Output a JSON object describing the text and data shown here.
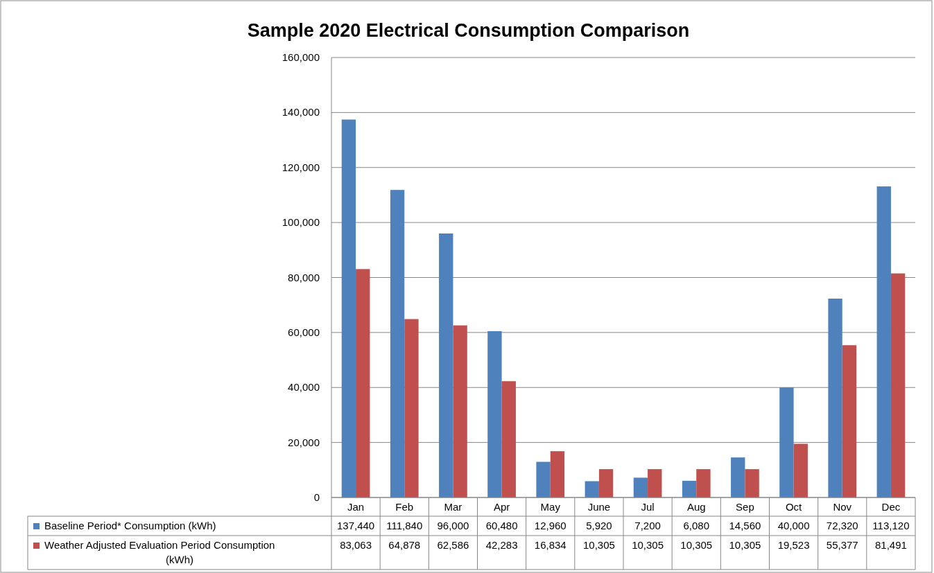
{
  "chart_data": {
    "type": "bar",
    "title": "Sample 2020 Electrical Consumption Comparison",
    "categories": [
      "Jan",
      "Feb",
      "Mar",
      "Apr",
      "May",
      "June",
      "Jul",
      "Aug",
      "Sep",
      "Oct",
      "Nov",
      "Dec"
    ],
    "series": [
      {
        "name": "Baseline Period* Consumption (kWh)",
        "color": "#4f81bd",
        "values": [
          137440,
          111840,
          96000,
          60480,
          12960,
          5920,
          7200,
          6080,
          14560,
          40000,
          72320,
          113120
        ],
        "value_labels": [
          "137,440",
          "111,840",
          "96,000",
          "60,480",
          "12,960",
          "5,920",
          "7,200",
          "6,080",
          "14,560",
          "40,000",
          "72,320",
          "113,120"
        ]
      },
      {
        "name": "Weather Adjusted Evaluation Period Consumption (kWh)",
        "color": "#c0504d",
        "values": [
          83063,
          64878,
          62586,
          42283,
          16834,
          10305,
          10305,
          10305,
          10305,
          19523,
          55377,
          81491
        ],
        "value_labels": [
          "83,063",
          "64,878",
          "62,586",
          "42,283",
          "16,834",
          "10,305",
          "10,305",
          "10,305",
          "10,305",
          "19,523",
          "55,377",
          "81,491"
        ]
      }
    ],
    "ylim": [
      0,
      160000
    ],
    "yticks": [
      {
        "value": 0,
        "label": "0"
      },
      {
        "value": 20000,
        "label": "20,000"
      },
      {
        "value": 40000,
        "label": "40,000"
      },
      {
        "value": 60000,
        "label": "60,000"
      },
      {
        "value": 80000,
        "label": "80,000"
      },
      {
        "value": 100000,
        "label": "100,000"
      },
      {
        "value": 120000,
        "label": "120,000"
      },
      {
        "value": 140000,
        "label": "140,000"
      },
      {
        "value": 160000,
        "label": "160,000"
      }
    ],
    "grid": "y",
    "legend": "bottom"
  }
}
